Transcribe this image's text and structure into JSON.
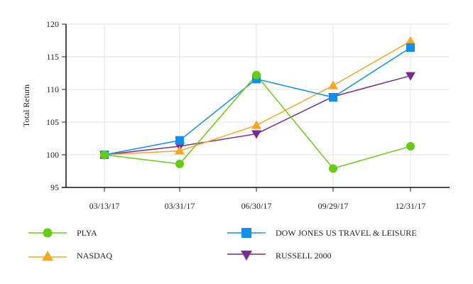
{
  "chart_data": {
    "type": "line",
    "title": "",
    "xlabel": "",
    "ylabel": "Total Return",
    "ylim": [
      95,
      120
    ],
    "yticks": [
      95,
      100,
      105,
      110,
      115,
      120
    ],
    "grid": true,
    "legend_position": "bottom",
    "categories": [
      "03/13/17",
      "03/31/17",
      "06/30/17",
      "09/29/17",
      "12/31/17"
    ],
    "series": [
      {
        "name": "PLYA",
        "color": "#66cc11",
        "marker": "circle",
        "values": [
          100,
          98.6,
          112.2,
          97.9,
          101.3
        ]
      },
      {
        "name": "DOW JONES US TRAVEL & LEISURE",
        "color": "#0f8ff0",
        "marker": "square",
        "values": [
          100,
          102.2,
          111.6,
          108.8,
          116.4
        ]
      },
      {
        "name": "NASDAQ",
        "color": "#f5a623",
        "marker": "triangle-up",
        "values": [
          100,
          100.6,
          104.5,
          110.6,
          117.4
        ]
      },
      {
        "name": "RUSSELL 2000",
        "color": "#7b2a8e",
        "marker": "triangle-down",
        "values": [
          100,
          101.3,
          103.2,
          108.9,
          112.1
        ]
      }
    ]
  },
  "legend": [
    {
      "label": "PLYA"
    },
    {
      "label": "DOW JONES US TRAVEL & LEISURE"
    },
    {
      "label": "NASDAQ"
    },
    {
      "label": "RUSSELL 2000"
    }
  ]
}
